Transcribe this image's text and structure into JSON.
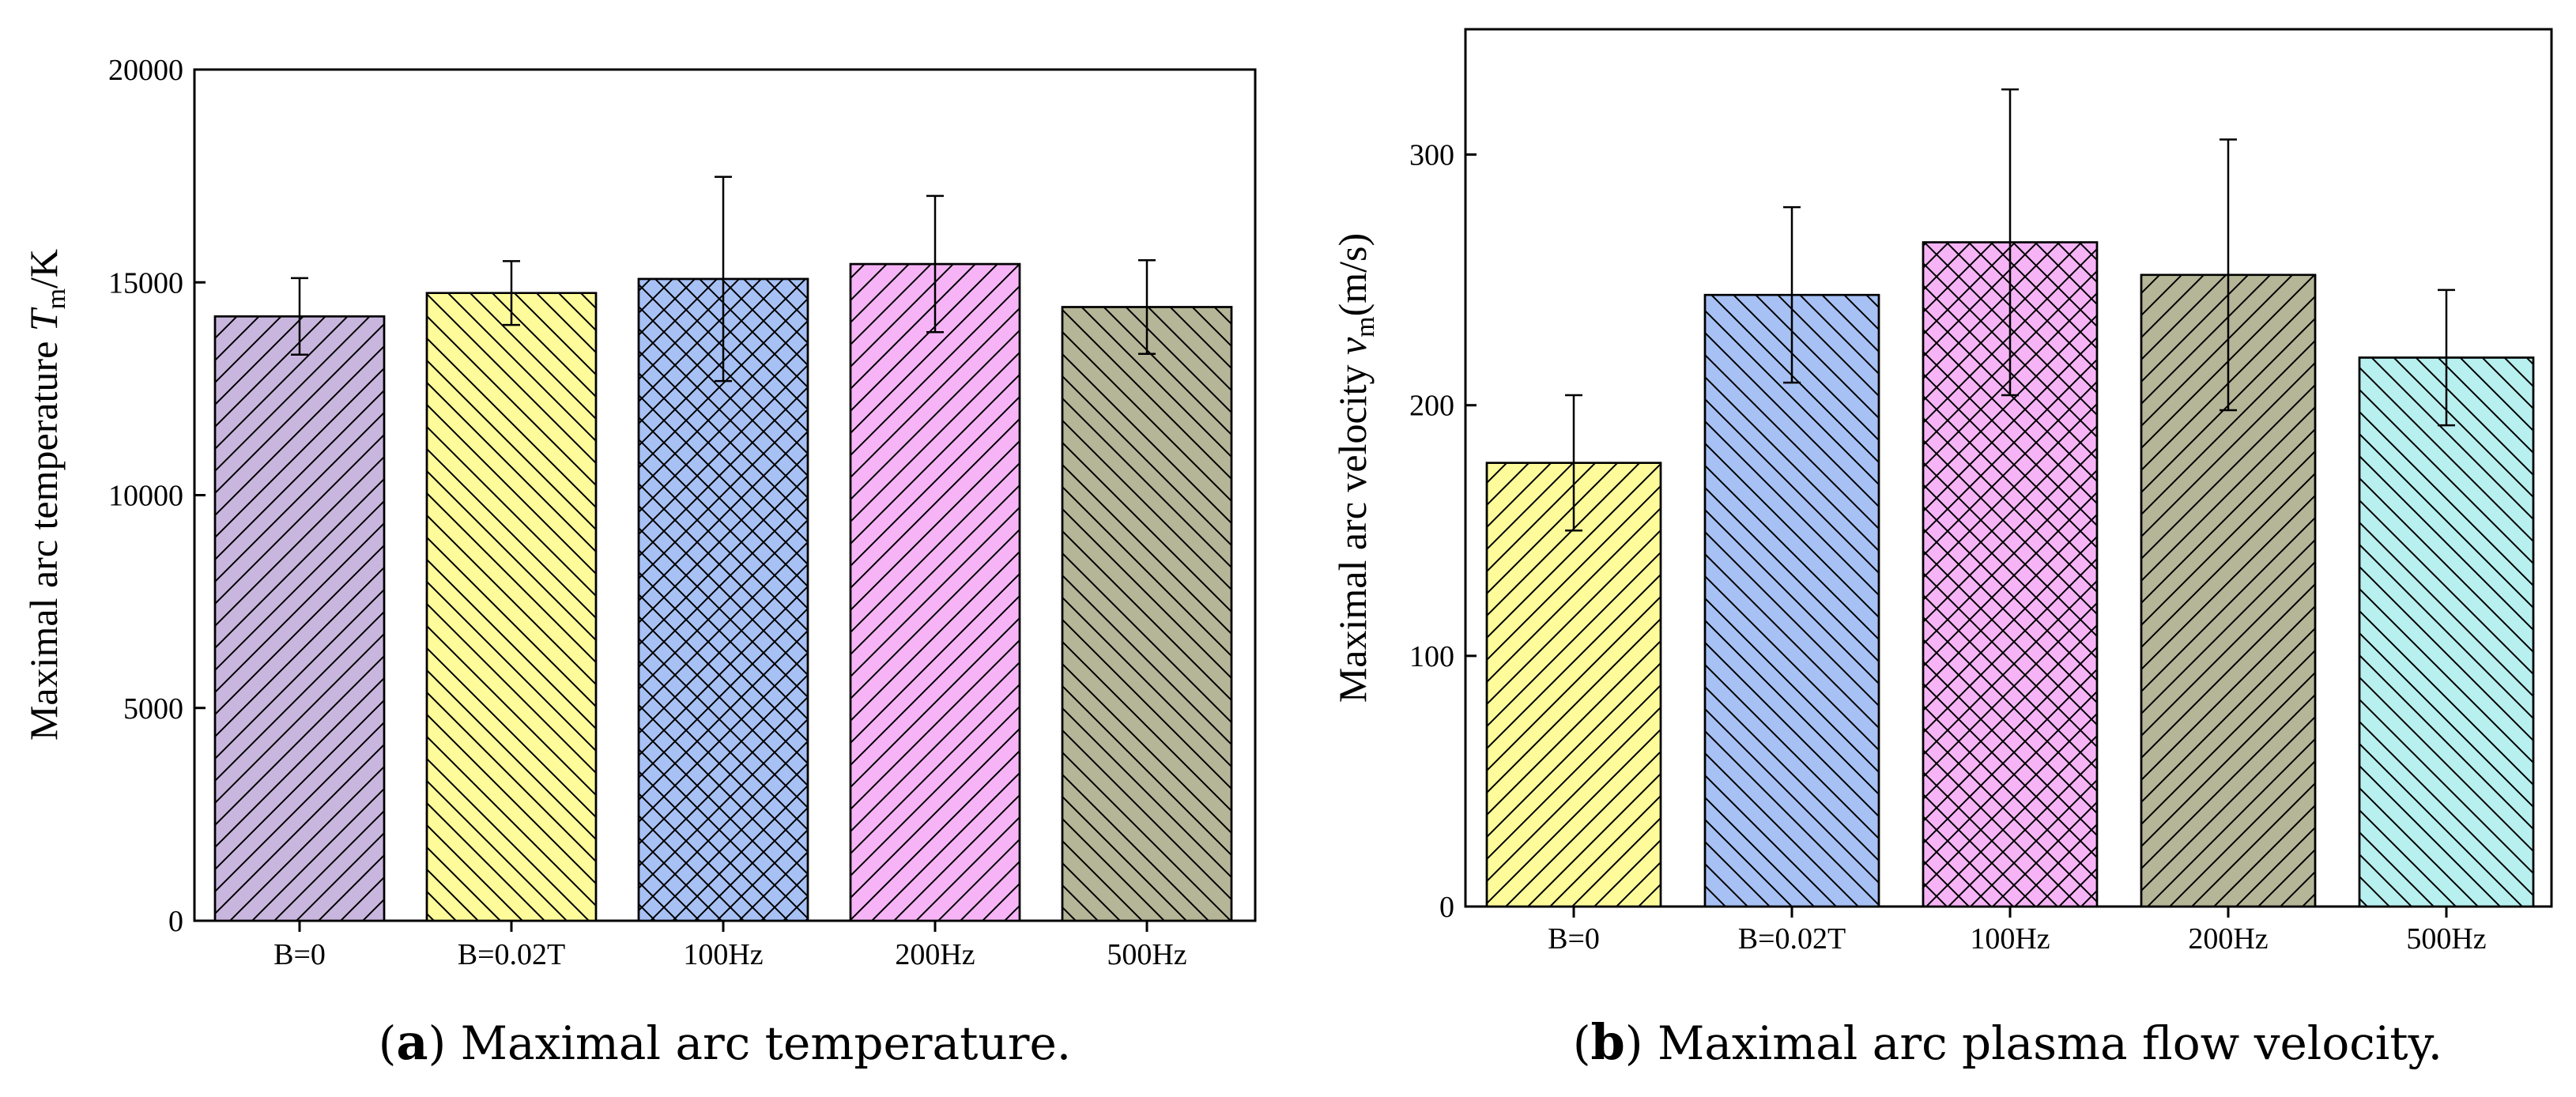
{
  "chart_data": [
    {
      "type": "bar",
      "panel": "a",
      "caption_label": "a",
      "caption_text": "Maximal arc temperature.",
      "ylabel_prefix": "Maximal arc temperature ",
      "ylabel_var": "T",
      "ylabel_sub": "m",
      "ylabel_suffix": "/K",
      "ylim": [
        0,
        20000
      ],
      "yticks": [
        0,
        5000,
        10000,
        15000,
        20000
      ],
      "categories": [
        "B=0",
        "B=0.02T",
        "100Hz",
        "200Hz",
        "500Hz"
      ],
      "values": [
        14200,
        14750,
        15080,
        15430,
        14420
      ],
      "errors": [
        900,
        750,
        2400,
        1600,
        1100
      ],
      "colors": [
        "#c9b6de",
        "#fdfb9a",
        "#a7c1f5",
        "#f6b4f6",
        "#b5b597"
      ],
      "patterns": [
        "back",
        "fwd",
        "cross",
        "back",
        "fwd"
      ]
    },
    {
      "type": "bar",
      "panel": "b",
      "caption_label": "b",
      "caption_text": "Maximal arc plasma flow velocity.",
      "ylabel_prefix": "Maximal arc velocity ",
      "ylabel_var": "v",
      "ylabel_sub": "m",
      "ylabel_suffix": "(m/s)",
      "ylim": [
        0,
        350
      ],
      "yticks": [
        0,
        100,
        200,
        300
      ],
      "categories": [
        "B=0",
        "B=0.02T",
        "100Hz",
        "200Hz",
        "500Hz"
      ],
      "values": [
        177,
        244,
        265,
        252,
        219
      ],
      "errors": [
        27,
        35,
        61,
        54,
        27
      ],
      "colors": [
        "#fdfb9a",
        "#a7c1f5",
        "#f6b4f6",
        "#b5b597",
        "#b8efef"
      ],
      "patterns": [
        "back",
        "fwd",
        "cross",
        "back",
        "fwd"
      ]
    }
  ]
}
